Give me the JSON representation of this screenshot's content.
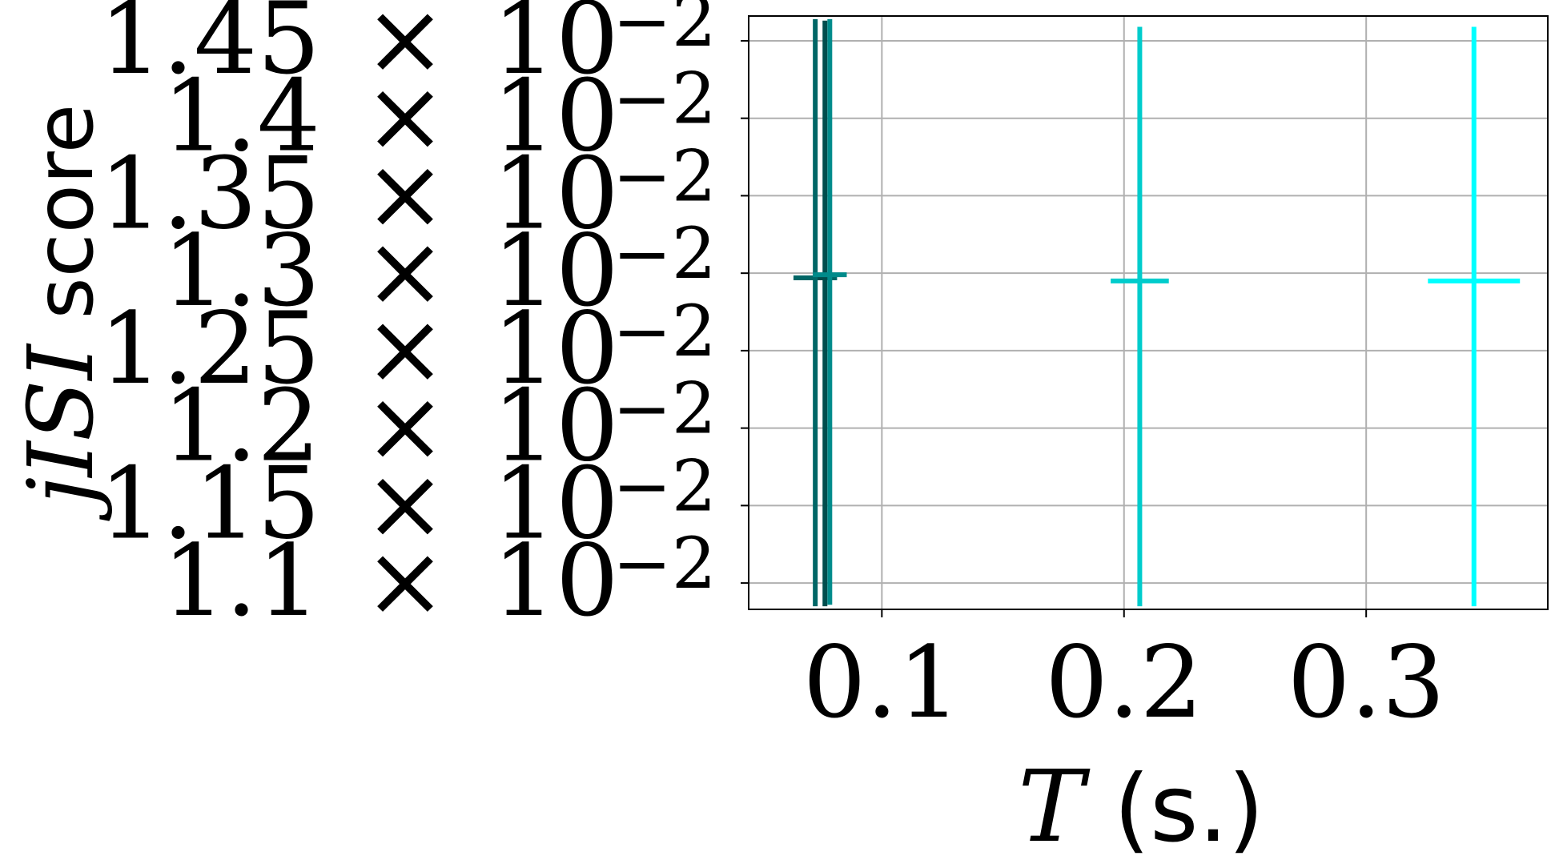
{
  "chart_data": {
    "type": "scatter",
    "title": "",
    "xlabel": {
      "var": "T",
      "unit": " (s.)"
    },
    "ylabel": {
      "var": "jISI",
      "word": " score"
    },
    "xlim": [
      0.045,
      0.375
    ],
    "ylim": [
      0.01083,
      0.01466
    ],
    "grid": true,
    "legend": "none",
    "x_ticks": [
      {
        "value": 0.1,
        "label": "0.1"
      },
      {
        "value": 0.2,
        "label": "0.2"
      },
      {
        "value": 0.3,
        "label": "0.3"
      }
    ],
    "y_ticks": [
      {
        "value": 0.011,
        "mantissa": "1.1",
        "times": "×",
        "base": "10",
        "exp": "−2"
      },
      {
        "value": 0.0115,
        "mantissa": "1.15",
        "times": "×",
        "base": "10",
        "exp": "−2"
      },
      {
        "value": 0.012,
        "mantissa": "1.2",
        "times": "×",
        "base": "10",
        "exp": "−2"
      },
      {
        "value": 0.0125,
        "mantissa": "1.25",
        "times": "×",
        "base": "10",
        "exp": "−2"
      },
      {
        "value": 0.013,
        "mantissa": "1.3",
        "times": "×",
        "base": "10",
        "exp": "−2"
      },
      {
        "value": 0.0135,
        "mantissa": "1.35",
        "times": "×",
        "base": "10",
        "exp": "−2"
      },
      {
        "value": 0.014,
        "mantissa": "1.4",
        "times": "×",
        "base": "10",
        "exp": "−2"
      },
      {
        "value": 0.0145,
        "mantissa": "1.45",
        "times": "×",
        "base": "10",
        "exp": "−2"
      }
    ],
    "points": [
      {
        "x": 0.0725,
        "x_err": 0.009,
        "y": 0.01297,
        "y_low": 0.01085,
        "y_high": 0.01464,
        "color": "#006666"
      },
      {
        "x": 0.0765,
        "x_err": 0.003,
        "y": 0.01297,
        "y_low": 0.01085,
        "y_high": 0.01463,
        "color": "#004d4d"
      },
      {
        "x": 0.0785,
        "x_err": 0.007,
        "y": 0.01299,
        "y_low": 0.01086,
        "y_high": 0.01464,
        "color": "#008b8b"
      },
      {
        "x": 0.2065,
        "x_err": 0.012,
        "y": 0.01295,
        "y_low": 0.01085,
        "y_high": 0.01459,
        "color": "#00cccc"
      },
      {
        "x": 0.3445,
        "x_err": 0.019,
        "y": 0.01295,
        "y_low": 0.01085,
        "y_high": 0.01459,
        "color": "#00ffff"
      }
    ]
  }
}
